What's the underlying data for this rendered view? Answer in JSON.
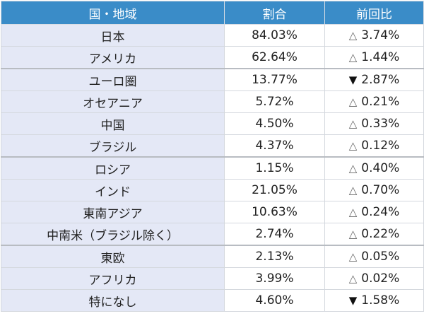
{
  "table": {
    "headers": [
      "国・地域",
      "割合",
      "前回比"
    ],
    "rows": [
      {
        "region": "日本",
        "share": "84.03%",
        "dir": "up",
        "symbol": "△",
        "change": "3.74%"
      },
      {
        "region": "アメリカ",
        "share": "62.64%",
        "dir": "up",
        "symbol": "△",
        "change": "1.44%"
      },
      {
        "region": "ユーロ圏",
        "share": "13.77%",
        "dir": "down",
        "symbol": "▼",
        "change": "2.87%"
      },
      {
        "region": "オセアニア",
        "share": "5.72%",
        "dir": "up",
        "symbol": "△",
        "change": "0.21%"
      },
      {
        "region": "中国",
        "share": "4.50%",
        "dir": "up",
        "symbol": "△",
        "change": "0.33%"
      },
      {
        "region": "ブラジル",
        "share": "4.37%",
        "dir": "up",
        "symbol": "△",
        "change": "0.12%"
      },
      {
        "region": "ロシア",
        "share": "1.15%",
        "dir": "up",
        "symbol": "△",
        "change": "0.40%"
      },
      {
        "region": "インド",
        "share": "21.05%",
        "dir": "up",
        "symbol": "△",
        "change": "0.70%"
      },
      {
        "region": "東南アジア",
        "share": "10.63%",
        "dir": "up",
        "symbol": "△",
        "change": "0.24%"
      },
      {
        "region": "中南米（ブラジル除く）",
        "share": "2.74%",
        "dir": "up",
        "symbol": "△",
        "change": "0.22%"
      },
      {
        "region": "東欧",
        "share": "2.13%",
        "dir": "up",
        "symbol": "△",
        "change": "0.05%"
      },
      {
        "region": "アフリカ",
        "share": "3.99%",
        "dir": "up",
        "symbol": "△",
        "change": "0.02%"
      },
      {
        "region": "特になし",
        "share": "4.60%",
        "dir": "down",
        "symbol": "▼",
        "change": "1.58%"
      }
    ]
  },
  "colors": {
    "header": "#3a8cc8",
    "first_column": "#e4e8f6"
  }
}
